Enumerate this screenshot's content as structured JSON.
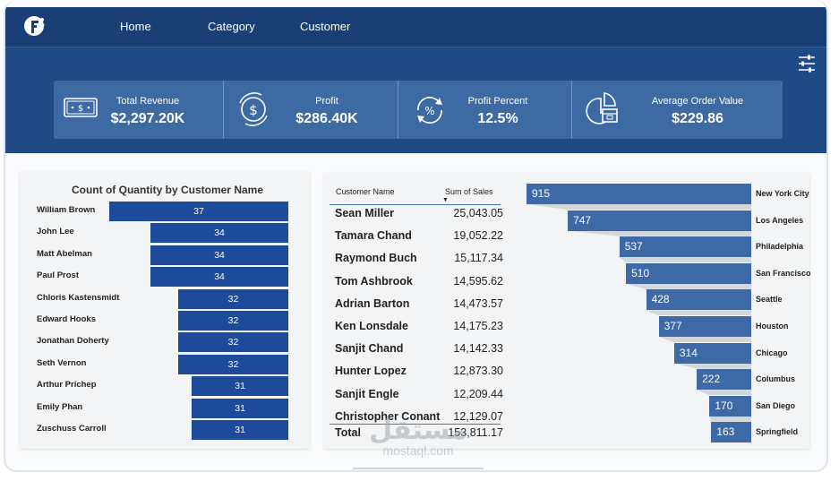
{
  "nav": {
    "items": [
      {
        "label": "Home"
      },
      {
        "label": "Category"
      },
      {
        "label": "Customer"
      }
    ]
  },
  "kpis": [
    {
      "label": "Total Revenue",
      "value": "$2,297.20K",
      "icon": "money-bill-icon"
    },
    {
      "label": "Profit",
      "value": "$286.40K",
      "icon": "dollar-coin-cycle-icon"
    },
    {
      "label": "Profit Percent",
      "value": "12.5%",
      "icon": "percent-cycle-icon"
    },
    {
      "label": "Average Order Value",
      "value": "$229.86",
      "icon": "pie-chart-box-icon"
    }
  ],
  "colors": {
    "header": "#1f4a86",
    "kpi_panel": "#3e6aa3",
    "bar": "#1e4a9b",
    "funnel_bar": "#3d6aa7"
  },
  "chart_data": [
    {
      "type": "bar",
      "title": "Count of Quantity by Customer Name",
      "categories": [
        "William Brown",
        "John Lee",
        "Matt Abelman",
        "Paul Prost",
        "Chloris Kastensmidt",
        "Edward Hooks",
        "Jonathan Doherty",
        "Seth Vernon",
        "Arthur Prichep",
        "Emily Phan",
        "Zuschuss Carroll"
      ],
      "values": [
        37,
        34,
        34,
        34,
        32,
        32,
        32,
        32,
        31,
        31,
        31
      ]
    },
    {
      "type": "bar",
      "title": "",
      "categories": [
        "New York City",
        "Los Angeles",
        "Philadelphia",
        "San Francisco",
        "Seattle",
        "Houston",
        "Chicago",
        "Columbus",
        "San Diego",
        "Springfield"
      ],
      "values": [
        915,
        747,
        537,
        510,
        428,
        377,
        314,
        222,
        170,
        163
      ]
    }
  ],
  "table": {
    "headers": {
      "name": "Customer Name",
      "sales": "Sum of Sales"
    },
    "rows": [
      {
        "name": "Sean Miller",
        "sales": "25,043.05"
      },
      {
        "name": "Tamara Chand",
        "sales": "19,052.22"
      },
      {
        "name": "Raymond Buch",
        "sales": "15,117.34"
      },
      {
        "name": "Tom Ashbrook",
        "sales": "14,595.62"
      },
      {
        "name": "Adrian Barton",
        "sales": "14,473.57"
      },
      {
        "name": "Ken Lonsdale",
        "sales": "14,175.23"
      },
      {
        "name": "Sanjit Chand",
        "sales": "14,142.33"
      },
      {
        "name": "Hunter Lopez",
        "sales": "12,873.30"
      },
      {
        "name": "Sanjit Engle",
        "sales": "12,209.44"
      },
      {
        "name": "Christopher Conant",
        "sales": "12,129.07"
      }
    ],
    "total": {
      "label": "Total",
      "value": "153,811.17"
    }
  },
  "watermark": {
    "arabic": "مستقل",
    "latin": "mostaql.com"
  }
}
